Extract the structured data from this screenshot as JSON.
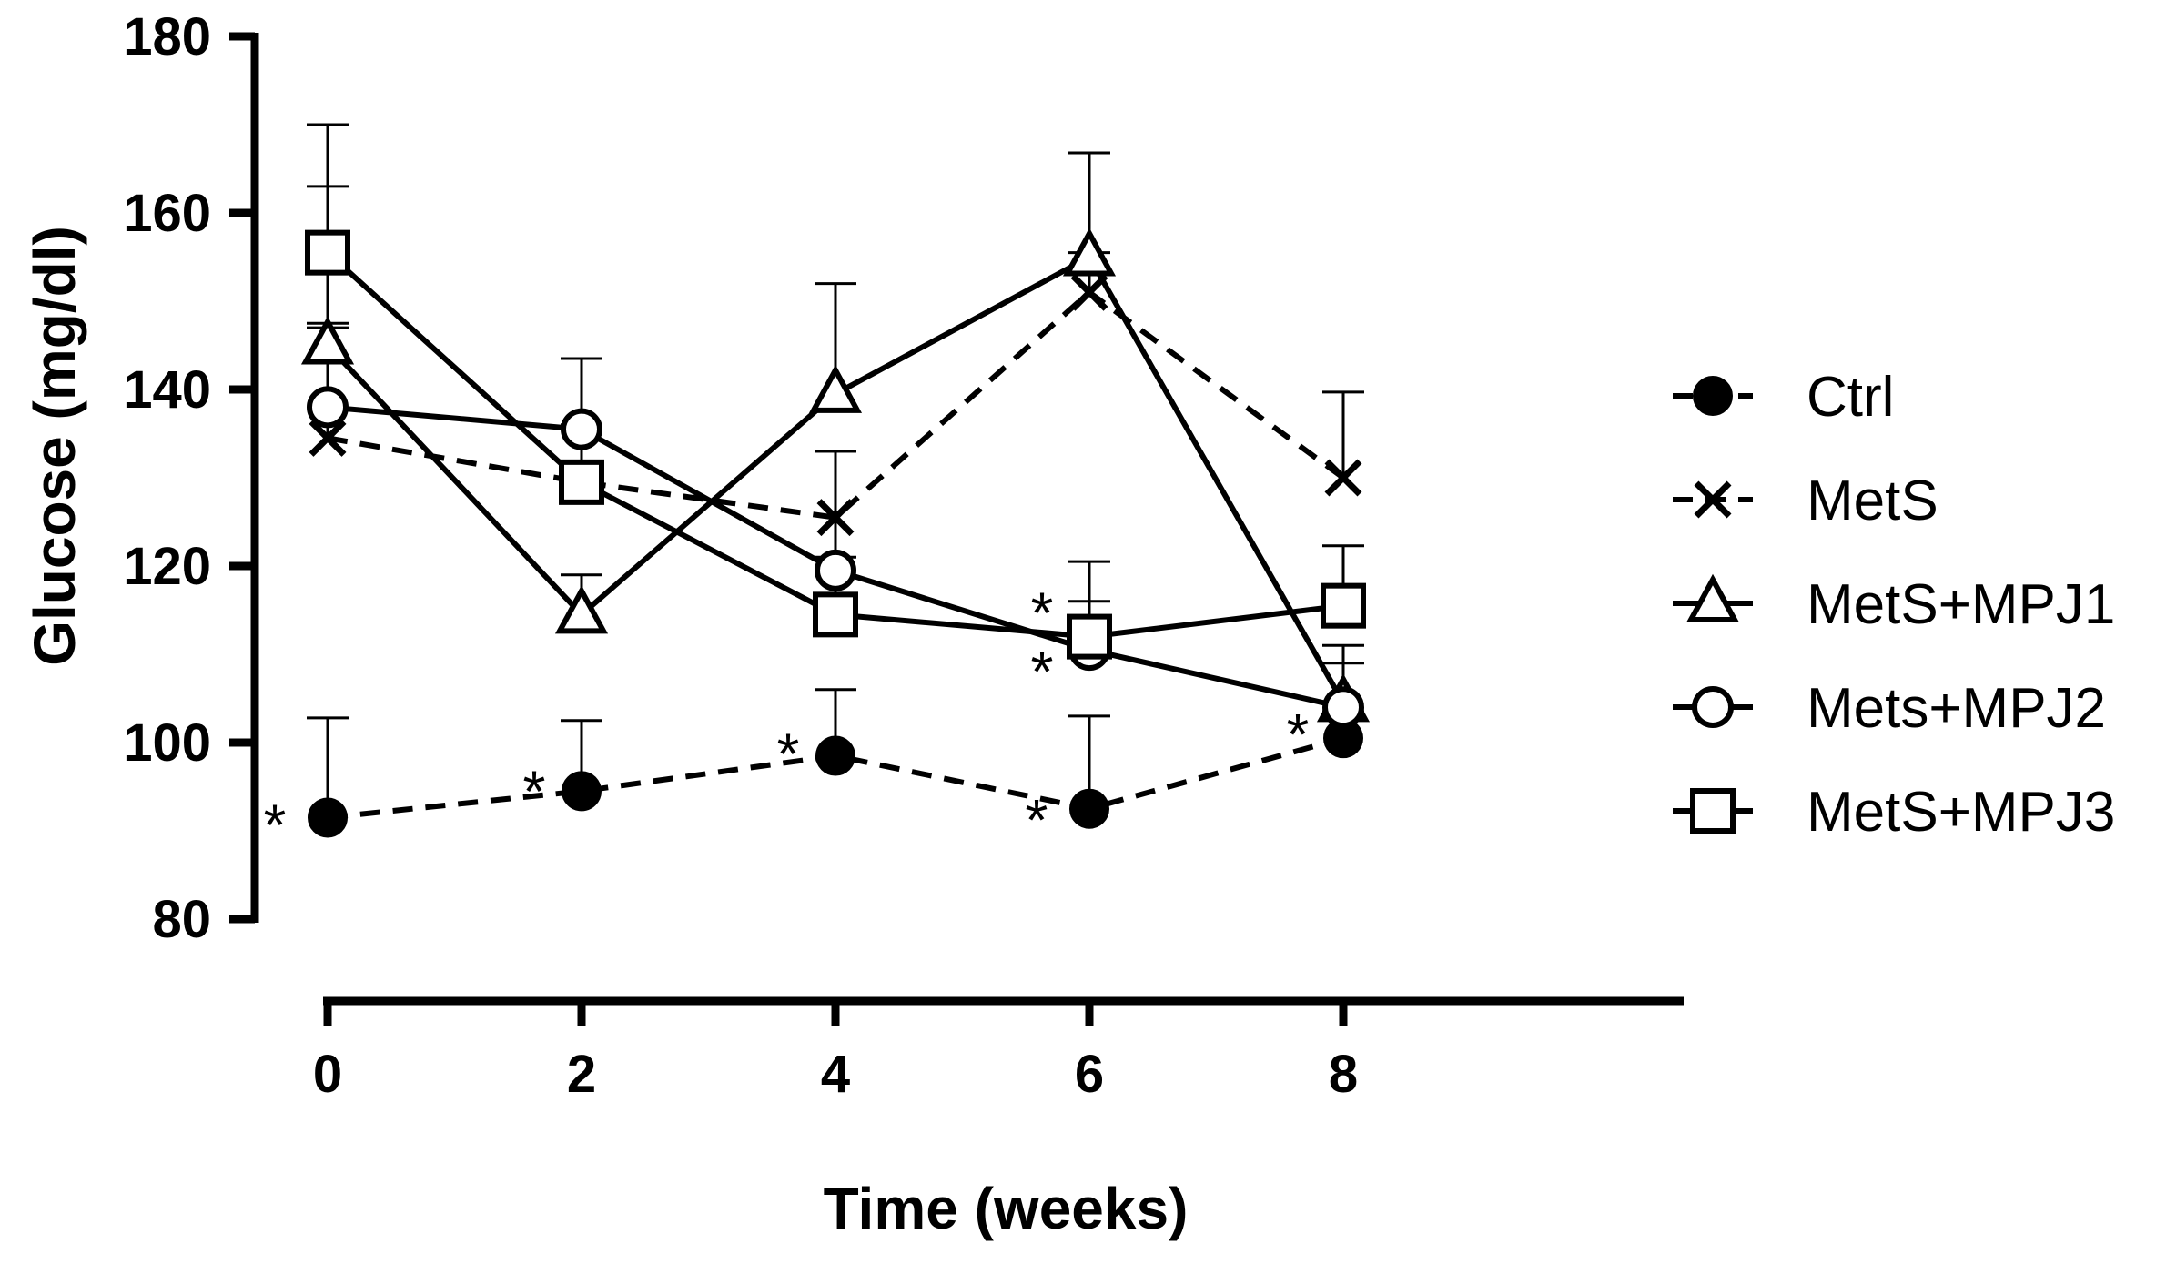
{
  "chart_data": {
    "type": "line",
    "xlabel": "Time (weeks)",
    "ylabel": "Glucose (mg/dl)",
    "x": [
      0,
      2,
      4,
      6,
      8
    ],
    "x_tick_labels": [
      "0",
      "2",
      "4",
      "6",
      "8"
    ],
    "y_ticks": [
      80,
      100,
      120,
      140,
      160,
      180
    ],
    "y_tick_labels": [
      "80",
      "100",
      "120",
      "140",
      "160",
      "180"
    ],
    "xlim": [
      -1.35,
      9.2
    ],
    "ylim": [
      80,
      180
    ],
    "grid": false,
    "legend_position": "right",
    "series": [
      {
        "name": "Ctrl",
        "marker": "filled-circle",
        "dashed": true,
        "values": [
          91.5,
          94.5,
          98.5,
          92.5,
          100.5
        ],
        "error_upper": [
          102.8,
          102.5,
          106.0,
          103.0,
          103.5
        ]
      },
      {
        "name": "MetS",
        "marker": "x",
        "dashed": true,
        "values": [
          134.5,
          129.5,
          125.5,
          151.0,
          130.0
        ],
        "error_upper": [
          163.0,
          143.5,
          133.0,
          155.5,
          139.7
        ]
      },
      {
        "name": "MetS+MPJ1",
        "marker": "triangle",
        "dashed": false,
        "values": [
          145.0,
          114.5,
          139.5,
          155.0,
          104.5
        ],
        "error_upper": [
          147.5,
          119.0,
          152.0,
          166.8,
          111.0
        ]
      },
      {
        "name": "Mets+MPJ2",
        "marker": "circle",
        "dashed": false,
        "values": [
          138.0,
          135.5,
          119.5,
          110.5,
          104.0
        ],
        "error_upper": [
          147.0,
          143.5,
          133.0,
          116.0,
          109.0
        ]
      },
      {
        "name": "MetS+MPJ3",
        "marker": "square",
        "dashed": false,
        "values": [
          155.5,
          129.5,
          114.5,
          112.0,
          115.5
        ],
        "error_upper": [
          170.0,
          136.0,
          121.0,
          120.5,
          122.3
        ]
      }
    ],
    "annotations": [
      {
        "text": "*",
        "x": 0,
        "y": 91.5,
        "side": "left"
      },
      {
        "text": "*",
        "x": 2,
        "y": 94.5,
        "side": "left"
      },
      {
        "text": "*",
        "x": 4,
        "y": 98.5,
        "side": "left"
      },
      {
        "text": "*",
        "x": 6,
        "y": 92.5,
        "side": "left"
      },
      {
        "text": "*",
        "x": 6,
        "y": 112.0,
        "side": "left"
      },
      {
        "text": "*",
        "x": 6,
        "y": 110.5,
        "side": "left"
      },
      {
        "text": "*",
        "x": 8,
        "y": 100.5,
        "side": "left"
      }
    ]
  }
}
